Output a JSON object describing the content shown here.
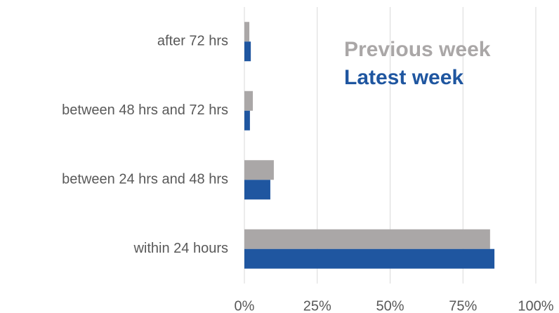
{
  "chart_data": {
    "type": "bar",
    "orientation": "horizontal",
    "categories": [
      "after 72 hrs",
      "between 48 hrs and 72 hrs",
      "between 24 hrs and 48 hrs",
      "within 24 hours"
    ],
    "series": [
      {
        "name": "Previous week",
        "color": "#aaa7a7",
        "values": [
          1.7,
          2.9,
          10.1,
          84.3
        ]
      },
      {
        "name": "Latest week",
        "color": "#1f56a0",
        "values": [
          2.2,
          1.9,
          8.9,
          85.8
        ]
      }
    ],
    "xlim": [
      0,
      100
    ],
    "xticks": [
      {
        "value": 0,
        "label": "0%"
      },
      {
        "value": 25,
        "label": "25%"
      },
      {
        "value": 50,
        "label": "50%"
      },
      {
        "value": 75,
        "label": "75%"
      },
      {
        "value": 100,
        "label": "100%"
      }
    ],
    "grid": true
  }
}
